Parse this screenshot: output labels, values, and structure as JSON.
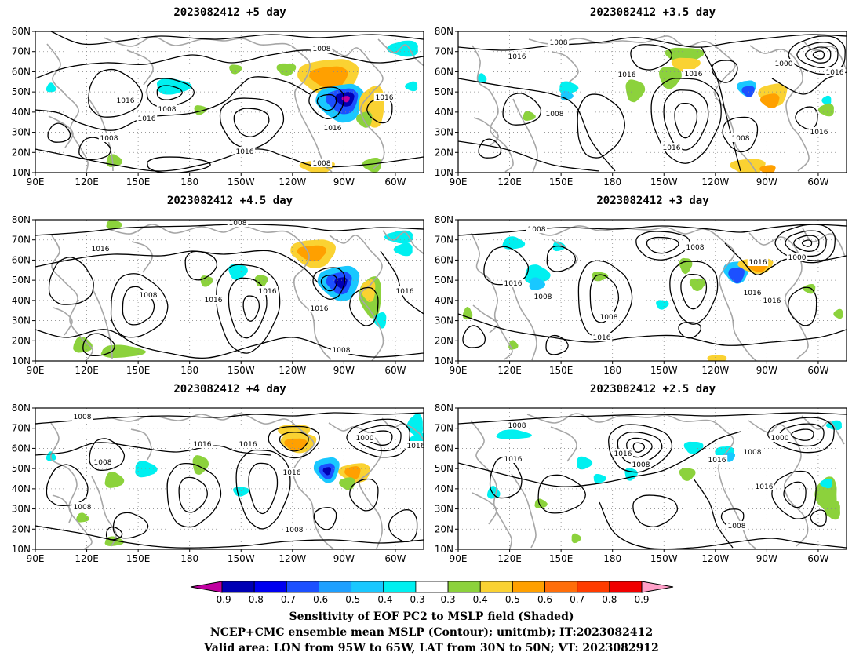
{
  "colors": {
    "contour": "#000000",
    "coast": "#a6a6a6",
    "grid": "#8c8c8c",
    "scale": [
      "#c000a0",
      "#0000b4",
      "#0000f0",
      "#1c50ff",
      "#1ea0ff",
      "#19c8ff",
      "#00f0f0",
      "#ffffff",
      "#8cd23c",
      "#fad232",
      "#ffa000",
      "#ff6e0a",
      "#ff3c00",
      "#f00000",
      "#ffa0c8"
    ]
  },
  "panels": [
    {
      "id": "p1",
      "title": "2023082412 +5 day"
    },
    {
      "id": "p2",
      "title": "2023082412 +3.5 day"
    },
    {
      "id": "p3",
      "title": "2023082412 +4.5 day"
    },
    {
      "id": "p4",
      "title": "2023082412 +3 day"
    },
    {
      "id": "p5",
      "title": "2023082412 +4 day"
    },
    {
      "id": "p6",
      "title": "2023082412 +2.5 day"
    }
  ],
  "lon_ticks": [
    "90E",
    "120E",
    "150E",
    "180",
    "150W",
    "120W",
    "90W",
    "60W"
  ],
  "lat_ticks": [
    "80N",
    "70N",
    "60N",
    "50N",
    "40N",
    "30N",
    "20N",
    "10N"
  ],
  "contour_labels": {
    "p1": [
      "1008",
      "1016",
      "1008",
      "1016",
      "1008",
      "1016",
      "1016",
      "1008",
      "1016"
    ],
    "p2": [
      "1008",
      "1016",
      "1008",
      "1016",
      "1016",
      "1000",
      "1016",
      "1008",
      "1016",
      "1016"
    ],
    "p3": [
      "1008",
      "1016",
      "1008",
      "1016",
      "1016",
      "1016",
      "1016",
      "1008"
    ],
    "p4": [
      "1008",
      "1008",
      "1016",
      "1008",
      "1016",
      "1008",
      "1016",
      "1016",
      "1016",
      "1000"
    ],
    "p5": [
      "1008",
      "1016",
      "1016",
      "1008",
      "1016",
      "1000",
      "1016",
      "1008",
      "1008"
    ],
    "p6": [
      "1008",
      "1016",
      "1016",
      "1008",
      "1016",
      "1000",
      "1008",
      "1016",
      "1008"
    ]
  },
  "colorbar": {
    "ticks": [
      "-0.9",
      "-0.8",
      "-0.7",
      "-0.6",
      "-0.5",
      "-0.4",
      "-0.3",
      "0.3",
      "0.4",
      "0.5",
      "0.6",
      "0.7",
      "0.8",
      "0.9"
    ]
  },
  "caption": {
    "line1": "Sensitivity of EOF PC2 to MSLP field (Shaded)",
    "line2": "NCEP+CMC ensemble mean MSLP (Contour); unit(mb); IT:2023082412",
    "line3": "Valid area: LON from 95W to 65W, LAT from 30N to 50N; VT: 2023082912"
  }
}
